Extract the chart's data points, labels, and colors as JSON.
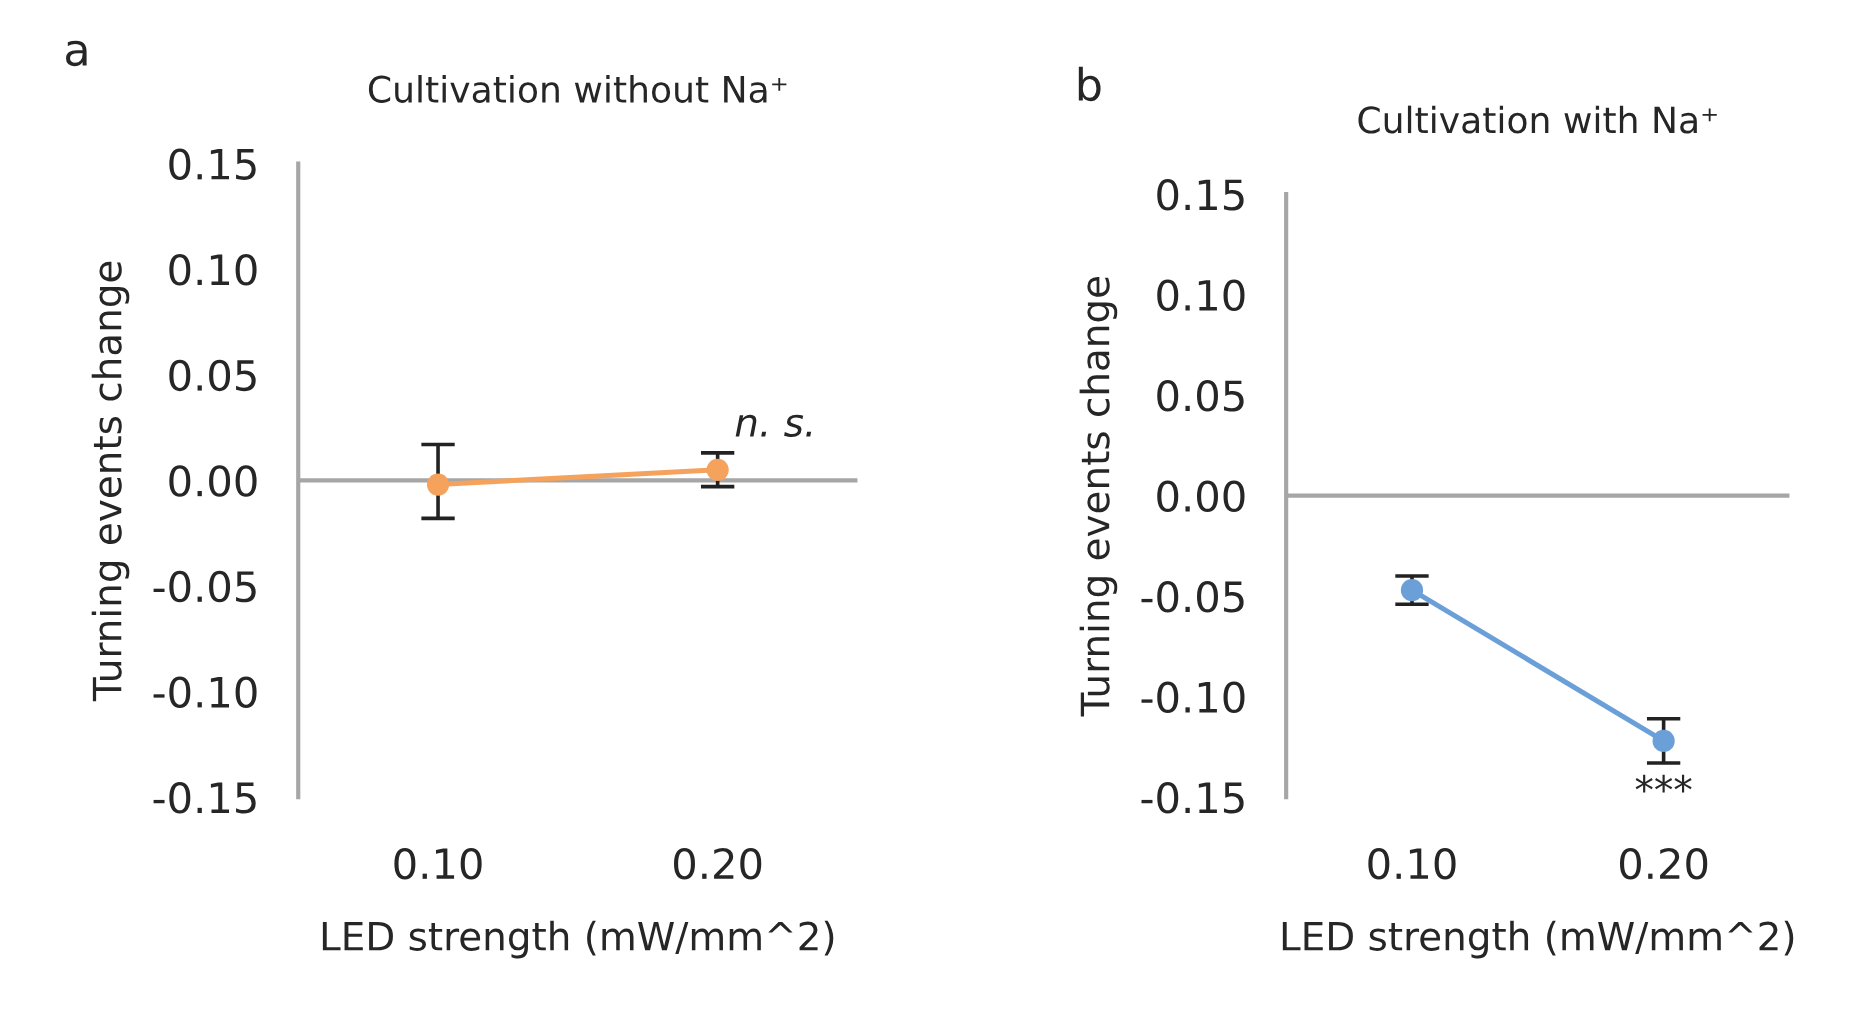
{
  "chart_data": [
    {
      "type": "line",
      "title": "Cultivation without Na⁺",
      "xlabel": "LED strength (mW/mm^2)",
      "ylabel": "Turning events change",
      "categories": [
        "0.10",
        "0.20"
      ],
      "series": [
        {
          "color": "#f5a25d",
          "values": [
            -0.002,
            0.005
          ],
          "errors": [
            [
              -0.018,
              0.017
            ],
            [
              -0.003,
              0.013
            ]
          ]
        }
      ],
      "ylim": [
        -0.15,
        0.15
      ],
      "yticks": [
        {
          "value": 0.15,
          "label": "0.15"
        },
        {
          "value": 0.1,
          "label": "0.10"
        },
        {
          "value": 0.05,
          "label": "0.05"
        },
        {
          "value": 0,
          "label": "0.00"
        },
        {
          "value": -0.05,
          "label": "-0.05"
        },
        {
          "value": -0.1,
          "label": "-0.10"
        },
        {
          "value": -0.15,
          "label": "-0.15"
        }
      ],
      "marker": "circle",
      "grid": false,
      "ref_lines": [
        {
          "axis": "y",
          "value": 0,
          "color": "#a6a6a6"
        }
      ],
      "annotations": [
        "a",
        {
          "text": "n. s.",
          "x": "0.20",
          "y": 0.013
        }
      ]
    },
    {
      "type": "line",
      "title": "Cultivation with Na⁺",
      "xlabel": "LED strength (mW/mm^2)",
      "ylabel": "Turning events change",
      "categories": [
        "0.10",
        "0.20"
      ],
      "series": [
        {
          "color": "#6a9fd8",
          "values": [
            -0.047,
            -0.122
          ],
          "errors": [
            [
              -0.054,
              -0.04
            ],
            [
              -0.133,
              -0.111
            ]
          ]
        }
      ],
      "ylim": [
        -0.15,
        0.15
      ],
      "yticks": [
        {
          "value": 0.15,
          "label": "0.15"
        },
        {
          "value": 0.1,
          "label": "0.10"
        },
        {
          "value": 0.05,
          "label": "0.05"
        },
        {
          "value": 0,
          "label": "0.00"
        },
        {
          "value": -0.05,
          "label": "-0.05"
        },
        {
          "value": -0.1,
          "label": "-0.10"
        },
        {
          "value": -0.15,
          "label": "-0.15"
        }
      ],
      "marker": "circle",
      "grid": false,
      "ref_lines": [
        {
          "axis": "y",
          "value": 0,
          "color": "#a6a6a6"
        }
      ],
      "annotations": [
        "b",
        {
          "text": "***",
          "x": "0.20",
          "y": -0.133
        }
      ]
    }
  ]
}
